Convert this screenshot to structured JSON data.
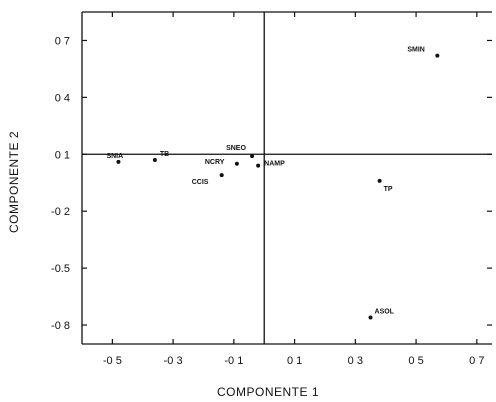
{
  "chart_data": {
    "type": "scatter",
    "xlabel": "COMPONENTE 1",
    "ylabel": "COMPONENTE 2",
    "xlim": [
      -0.6,
      0.75
    ],
    "ylim": [
      -0.9,
      0.85
    ],
    "x_ticks": [
      -0.5,
      -0.3,
      -0.1,
      0.1,
      0.3,
      0.5,
      0.7
    ],
    "y_ticks": [
      0.7,
      0.4,
      0.1,
      -0.2,
      -0.5,
      -0.8
    ],
    "x_tick_labels": [
      "-0 5",
      "-0 3",
      "-0 1",
      "0 1",
      "0 3",
      "0 5",
      "0 7"
    ],
    "y_tick_labels": [
      "0 7",
      "0 4",
      "0 1",
      "-0 2",
      "-0.5",
      "-0 8"
    ],
    "reference_lines": {
      "x": 0.0,
      "y": 0.1
    },
    "points": [
      {
        "label": "SMIN",
        "x": 0.57,
        "y": 0.62
      },
      {
        "label": "SNIA",
        "x": -0.48,
        "y": 0.06
      },
      {
        "label": "TB",
        "x": -0.36,
        "y": 0.07
      },
      {
        "label": "SNEO",
        "x": -0.04,
        "y": 0.09
      },
      {
        "label": "NCRY",
        "x": -0.09,
        "y": 0.05
      },
      {
        "label": "NAMP",
        "x": -0.02,
        "y": 0.04
      },
      {
        "label": "CCIS",
        "x": -0.14,
        "y": -0.01
      },
      {
        "label": "TP",
        "x": 0.38,
        "y": -0.04
      },
      {
        "label": "ASOL",
        "x": 0.35,
        "y": -0.76
      }
    ],
    "grid": false,
    "legend": "none"
  }
}
